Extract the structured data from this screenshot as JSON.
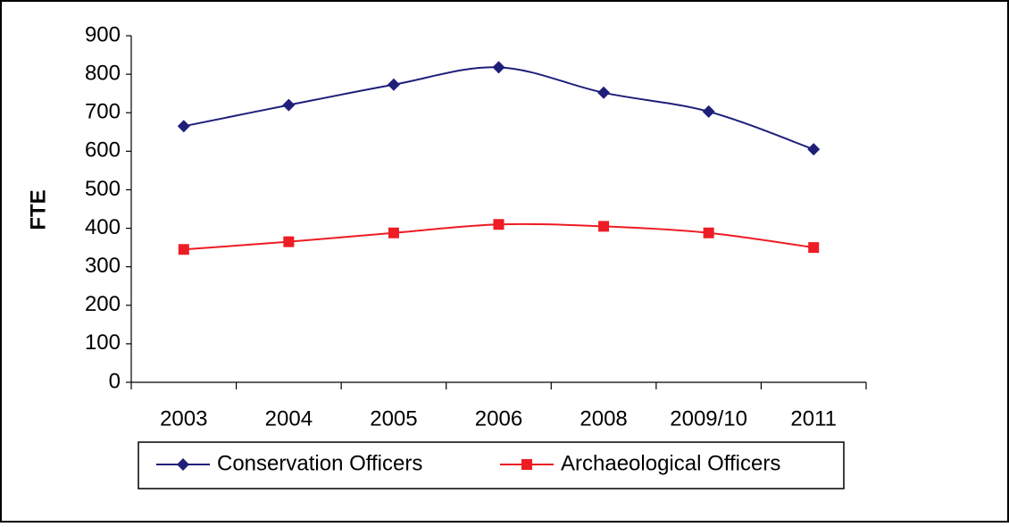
{
  "chart_data": {
    "type": "line",
    "y_label": "FTE",
    "categories": [
      "2003",
      "2004",
      "2005",
      "2006",
      "2008",
      "2009/10",
      "2011"
    ],
    "series": [
      {
        "name": "Conservation Officers",
        "color": "#1f1f7a",
        "marker": "diamond",
        "values": [
          665,
          720,
          773,
          818,
          752,
          703,
          605
        ]
      },
      {
        "name": "Archaeological Officers",
        "color": "#ee1c24",
        "marker": "square",
        "values": [
          345,
          365,
          388,
          410,
          405,
          388,
          350
        ]
      }
    ],
    "ylim": [
      0,
      900
    ],
    "yticks": [
      0,
      100,
      200,
      300,
      400,
      500,
      600,
      700,
      800,
      900
    ],
    "grid": false,
    "legend": "bottom"
  }
}
